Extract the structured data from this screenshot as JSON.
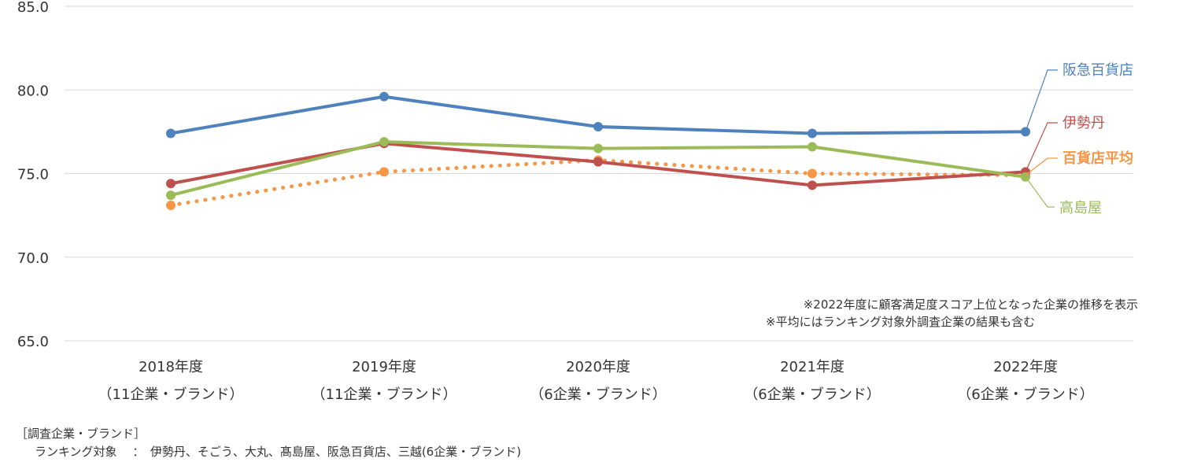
{
  "chart_data": {
    "type": "line",
    "title": "",
    "xlabel": "",
    "ylabel": "",
    "ylim": [
      65.0,
      85.0
    ],
    "yticks": [
      "85.0",
      "80.0",
      "75.0",
      "70.0",
      "65.0"
    ],
    "ytick_values": [
      85,
      80,
      75,
      70,
      65
    ],
    "grid": true,
    "categories": [
      {
        "year": "2018年度",
        "sub": "（11企業・ブランド）"
      },
      {
        "year": "2019年度",
        "sub": "（11企業・ブランド）"
      },
      {
        "year": "2020年度",
        "sub": "（6企業・ブランド）"
      },
      {
        "year": "2021年度",
        "sub": "（6企業・ブランド）"
      },
      {
        "year": "2022年度",
        "sub": "（6企業・ブランド）"
      }
    ],
    "series": [
      {
        "name": "阪急百貨店",
        "color": "#4f81bd",
        "style": "solid",
        "bold": false,
        "values": [
          77.4,
          79.6,
          77.8,
          77.4,
          77.5
        ]
      },
      {
        "name": "伊勢丹",
        "color": "#c0504d",
        "style": "solid",
        "bold": false,
        "values": [
          74.4,
          76.8,
          75.7,
          74.3,
          75.1
        ]
      },
      {
        "name": "高島屋",
        "color": "#9bbb59",
        "style": "solid",
        "bold": false,
        "values": [
          73.7,
          76.9,
          76.5,
          76.6,
          74.8
        ]
      },
      {
        "name": "百貨店平均",
        "color": "#f79646",
        "style": "dotted",
        "bold": true,
        "values": [
          73.1,
          75.1,
          75.8,
          75.0,
          74.9
        ]
      }
    ],
    "notes": [
      "※2022年度に顧客満足度スコア上位となった企業の推移を表示",
      "※平均にはランキング対象外調査企業の結果も含む"
    ]
  },
  "footer": {
    "title": "［調査企業・ブランド］",
    "ranking_line": "ランキング対象　 ：　伊勢丹、そごう、大丸、髙島屋、阪急百貨店、三越(6企業・ブランド)"
  }
}
